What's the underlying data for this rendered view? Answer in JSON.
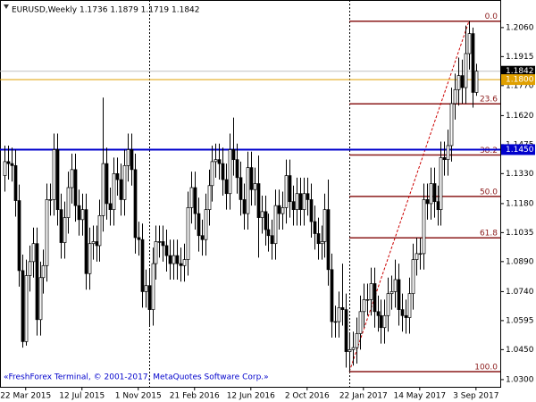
{
  "chart_data": {
    "type": "candlestick",
    "header": "EURUSD,Weekly  1.1736 1.1879 1.1719 1.1842",
    "footer": "«FreshForex Terminal, © 2001-2017, MetaQuotes Software Corp.»",
    "xlim": [
      -1.3,
      140.9
    ],
    "ylim": [
      1.0264,
      1.2198
    ],
    "yticks": [
      {
        "value": 1.206,
        "label": "1.2060"
      },
      {
        "value": 1.1915,
        "label": "1.1915"
      },
      {
        "value": 1.177,
        "label": "1.1770"
      },
      {
        "value": 1.162,
        "label": "1.1620"
      },
      {
        "value": 1.1475,
        "label": "1.1475"
      },
      {
        "value": 1.133,
        "label": "1.1330"
      },
      {
        "value": 1.118,
        "label": "1.1180"
      },
      {
        "value": 1.1035,
        "label": "1.1035"
      },
      {
        "value": 1.089,
        "label": "1.0890"
      },
      {
        "value": 1.074,
        "label": "1.0740"
      },
      {
        "value": 1.0595,
        "label": "1.0595"
      },
      {
        "value": 1.045,
        "label": "1.0450"
      },
      {
        "value": 1.03,
        "label": "1.0300"
      }
    ],
    "xticks": [
      {
        "value": 6,
        "label": "22 Mar 2015"
      },
      {
        "value": 22,
        "label": "12 Jul 2015"
      },
      {
        "value": 38,
        "label": "1 Nov 2015"
      },
      {
        "value": 54,
        "label": "21 Feb 2016"
      },
      {
        "value": 70,
        "label": "12 Jun 2016"
      },
      {
        "value": 86,
        "label": "2 Oct 2016"
      },
      {
        "value": 102,
        "label": "22 Jan 2017"
      },
      {
        "value": 118,
        "label": "14 May 2017"
      },
      {
        "value": 134,
        "label": "3 Sep 2017"
      }
    ],
    "bull_color": "#ffffff",
    "bear_color": "#000000",
    "separators": [
      41,
      98
    ],
    "price_lines": [
      {
        "value": 1.1842,
        "label": "1.1842",
        "color": "#c0c0c0",
        "box": "#000000"
      },
      {
        "value": 1.18,
        "label": "1.1800",
        "color": "#e0a000",
        "box": "#e0a000"
      },
      {
        "value": 1.145,
        "label": "1.1450",
        "color": "#0000cc",
        "box": "#0000cc"
      }
    ],
    "fibo": {
      "start": 98,
      "end": 132,
      "color": "#8b1a1a",
      "levels": [
        {
          "value": 1.2092,
          "label": "0.0"
        },
        {
          "value": 1.1679,
          "label": "23.6"
        },
        {
          "value": 1.1423,
          "label": "38.2"
        },
        {
          "value": 1.1216,
          "label": "50.0"
        },
        {
          "value": 1.1009,
          "label": "61.8"
        },
        {
          "value": 1.034,
          "label": "100.0"
        }
      ]
    },
    "open": [
      1.132,
      1.139,
      1.138,
      1.137,
      1.1195,
      1.0845,
      1.049,
      1.082,
      1.089,
      1.098,
      1.06,
      1.081,
      1.087,
      1.12,
      1.12,
      1.145,
      1.115,
      1.0985,
      1.111,
      1.126,
      1.135,
      1.117,
      1.11,
      1.115,
      1.083,
      1.098,
      1.099,
      1.097,
      1.112,
      1.138,
      1.118,
      1.115,
      1.133,
      1.13,
      1.12,
      1.137,
      1.145,
      1.135,
      1.101,
      1.1,
      1.074,
      1.077,
      1.065,
      1.088,
      1.099,
      1.099,
      1.097,
      1.092,
      1.088,
      1.092,
      1.088,
      1.087,
      1.09,
      1.116,
      1.126,
      1.113,
      1.102,
      1.1,
      1.115,
      1.127,
      1.139,
      1.14,
      1.138,
      1.13,
      1.123,
      1.145,
      1.14,
      1.131,
      1.12,
      1.113,
      1.136,
      1.125,
      1.128,
      1.111,
      1.114,
      1.105,
      1.102,
      1.098,
      1.117,
      1.113,
      1.116,
      1.132,
      1.119,
      1.115,
      1.123,
      1.115,
      1.123,
      1.12,
      1.109,
      1.103,
      1.098,
      1.099,
      1.115,
      1.085,
      1.059,
      1.059,
      1.066,
      1.065,
      1.044,
      1.045,
      1.046,
      1.053,
      1.064,
      1.07,
      1.07,
      1.078,
      1.064,
      1.062,
      1.056,
      1.062,
      1.073,
      1.074,
      1.08,
      1.065,
      1.062,
      1.061,
      1.073,
      1.09,
      1.093,
      1.093,
      1.12,
      1.118,
      1.128,
      1.119,
      1.115,
      1.141,
      1.14,
      1.147,
      1.168,
      1.175,
      1.182,
      1.176,
      1.193,
      1.203,
      1.1736
    ],
    "high": [
      1.147,
      1.147,
      1.146,
      1.145,
      1.1275,
      1.0925,
      1.09,
      1.097,
      1.106,
      1.106,
      1.089,
      1.095,
      1.128,
      1.128,
      1.153,
      1.153,
      1.123,
      1.119,
      1.134,
      1.143,
      1.143,
      1.125,
      1.123,
      1.123,
      1.106,
      1.107,
      1.107,
      1.12,
      1.171,
      1.146,
      1.126,
      1.141,
      1.141,
      1.138,
      1.145,
      1.153,
      1.153,
      1.143,
      1.109,
      1.108,
      1.085,
      1.085,
      1.096,
      1.107,
      1.107,
      1.107,
      1.105,
      1.1,
      1.1,
      1.1,
      1.096,
      1.098,
      1.124,
      1.134,
      1.134,
      1.121,
      1.11,
      1.123,
      1.135,
      1.147,
      1.148,
      1.148,
      1.146,
      1.138,
      1.153,
      1.161,
      1.148,
      1.139,
      1.128,
      1.144,
      1.144,
      1.136,
      1.142,
      1.122,
      1.122,
      1.113,
      1.11,
      1.125,
      1.125,
      1.124,
      1.14,
      1.14,
      1.127,
      1.131,
      1.131,
      1.131,
      1.131,
      1.128,
      1.117,
      1.111,
      1.107,
      1.123,
      1.13,
      1.093,
      1.067,
      1.074,
      1.088,
      1.073,
      1.053,
      1.054,
      1.061,
      1.072,
      1.078,
      1.078,
      1.086,
      1.086,
      1.072,
      1.07,
      1.07,
      1.081,
      1.082,
      1.09,
      1.088,
      1.073,
      1.07,
      1.081,
      1.098,
      1.101,
      1.101,
      1.128,
      1.128,
      1.136,
      1.136,
      1.127,
      1.149,
      1.149,
      1.155,
      1.176,
      1.183,
      1.191,
      1.19,
      1.207,
      1.2092,
      1.206,
      1.1879
    ],
    "low": [
      1.124,
      1.13,
      1.129,
      1.1115,
      1.0765,
      1.046,
      1.047,
      1.074,
      1.081,
      1.052,
      1.052,
      1.073,
      1.079,
      1.112,
      1.112,
      1.107,
      1.0905,
      1.0905,
      1.103,
      1.118,
      1.109,
      1.102,
      1.102,
      1.075,
      1.075,
      1.09,
      1.089,
      1.089,
      1.104,
      1.11,
      1.107,
      1.107,
      1.122,
      1.112,
      1.112,
      1.129,
      1.127,
      1.093,
      1.092,
      1.066,
      1.066,
      1.057,
      1.057,
      1.08,
      1.091,
      1.089,
      1.084,
      1.08,
      1.08,
      1.08,
      1.079,
      1.079,
      1.082,
      1.108,
      1.105,
      1.094,
      1.092,
      1.092,
      1.107,
      1.119,
      1.131,
      1.13,
      1.122,
      1.115,
      1.115,
      1.132,
      1.123,
      1.112,
      1.105,
      1.105,
      1.117,
      1.117,
      1.091,
      1.103,
      1.097,
      1.094,
      1.09,
      1.09,
      1.105,
      1.105,
      1.108,
      1.111,
      1.107,
      1.107,
      1.107,
      1.107,
      1.112,
      1.101,
      1.095,
      1.09,
      1.09,
      1.091,
      1.077,
      1.051,
      1.051,
      1.051,
      1.057,
      1.036,
      1.034,
      1.037,
      1.038,
      1.045,
      1.056,
      1.062,
      1.062,
      1.056,
      1.054,
      1.048,
      1.048,
      1.054,
      1.065,
      1.066,
      1.057,
      1.054,
      1.053,
      1.053,
      1.065,
      1.082,
      1.085,
      1.085,
      1.11,
      1.11,
      1.111,
      1.107,
      1.107,
      1.132,
      1.132,
      1.139,
      1.16,
      1.167,
      1.168,
      1.168,
      1.185,
      1.166,
      1.1719
    ],
    "close": [
      1.139,
      1.138,
      1.137,
      1.1195,
      1.0845,
      1.049,
      1.082,
      1.089,
      1.098,
      1.06,
      1.081,
      1.087,
      1.12,
      1.12,
      1.145,
      1.115,
      1.0985,
      1.111,
      1.126,
      1.135,
      1.117,
      1.11,
      1.115,
      1.083,
      1.098,
      1.099,
      1.097,
      1.112,
      1.138,
      1.118,
      1.115,
      1.133,
      1.13,
      1.12,
      1.137,
      1.145,
      1.135,
      1.101,
      1.1,
      1.074,
      1.077,
      1.065,
      1.088,
      1.099,
      1.099,
      1.097,
      1.092,
      1.088,
      1.092,
      1.088,
      1.087,
      1.09,
      1.116,
      1.126,
      1.113,
      1.102,
      1.1,
      1.115,
      1.127,
      1.139,
      1.14,
      1.138,
      1.13,
      1.123,
      1.145,
      1.14,
      1.131,
      1.12,
      1.113,
      1.136,
      1.125,
      1.128,
      1.111,
      1.114,
      1.105,
      1.102,
      1.098,
      1.117,
      1.113,
      1.116,
      1.132,
      1.119,
      1.115,
      1.123,
      1.115,
      1.123,
      1.12,
      1.109,
      1.103,
      1.098,
      1.099,
      1.115,
      1.085,
      1.059,
      1.059,
      1.066,
      1.065,
      1.044,
      1.045,
      1.046,
      1.053,
      1.064,
      1.07,
      1.07,
      1.078,
      1.064,
      1.062,
      1.056,
      1.062,
      1.073,
      1.074,
      1.08,
      1.065,
      1.062,
      1.061,
      1.073,
      1.09,
      1.093,
      1.093,
      1.12,
      1.118,
      1.128,
      1.119,
      1.115,
      1.141,
      1.14,
      1.147,
      1.168,
      1.175,
      1.182,
      1.176,
      1.193,
      1.203,
      1.1736,
      1.1842
    ]
  }
}
